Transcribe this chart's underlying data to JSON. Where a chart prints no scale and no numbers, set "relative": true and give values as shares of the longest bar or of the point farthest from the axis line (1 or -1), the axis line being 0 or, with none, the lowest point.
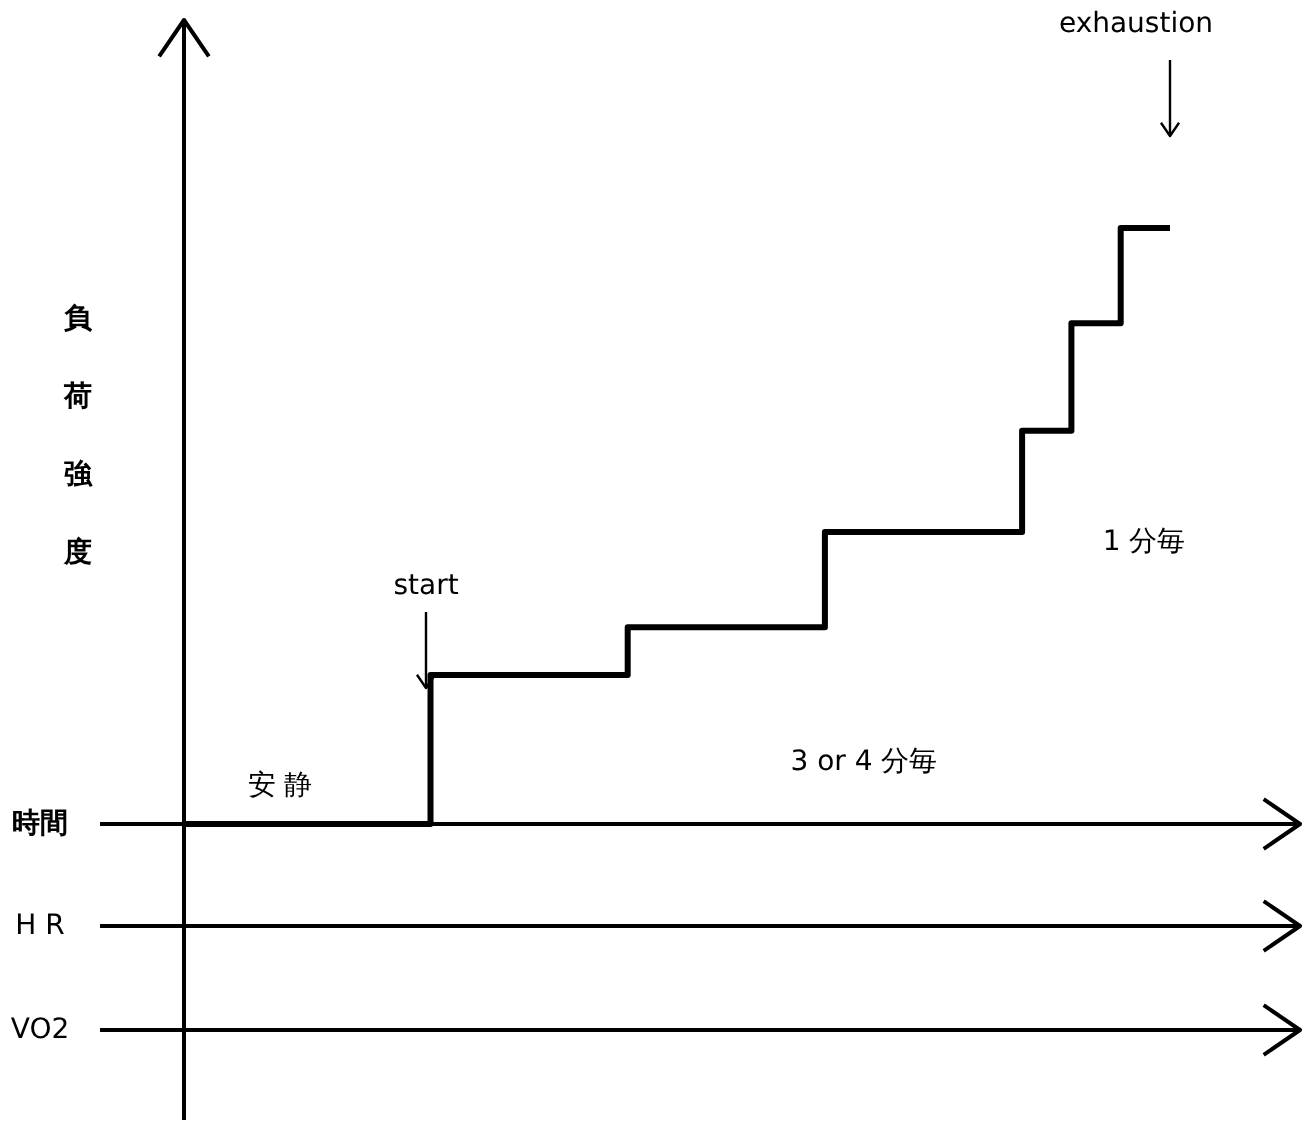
{
  "chart_data": {
    "type": "step",
    "relative": true,
    "ylabel": "負荷強度",
    "xlabel": "時間",
    "categories": [
      null,
      null,
      null,
      null,
      null,
      null,
      null,
      null,
      null,
      null,
      null,
      null,
      null,
      null,
      null,
      null,
      null,
      null,
      null,
      null,
      null
    ],
    "values": [
      0,
      0,
      0,
      0,
      0,
      0.25,
      0.25,
      0.25,
      0.25,
      0.33,
      0.33,
      0.33,
      0.33,
      0.49,
      0.49,
      0.49,
      0.49,
      0.66,
      0.84,
      1,
      1
    ],
    "color": "#000000",
    "annotations": [
      "安 静",
      "start",
      "exhaustion",
      "3 or 4 分毎",
      "1 分毎",
      "H R",
      "VO2"
    ]
  }
}
